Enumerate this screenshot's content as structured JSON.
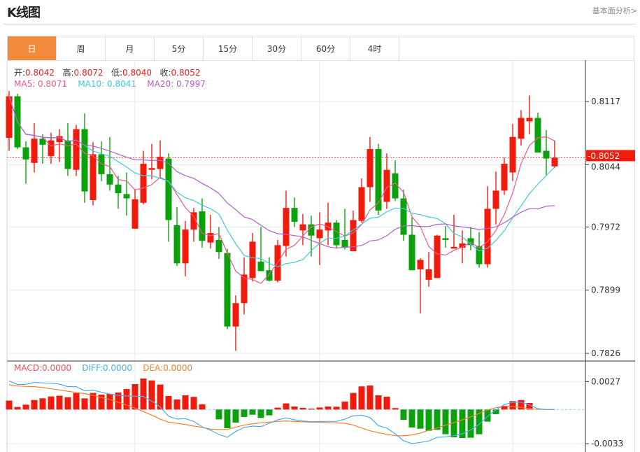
{
  "header": {
    "title": "K线图",
    "link": "基本面分析>"
  },
  "tabs": [
    {
      "label": "日",
      "active": true
    },
    {
      "label": "周"
    },
    {
      "label": "月"
    },
    {
      "label": "5分"
    },
    {
      "label": "15分"
    },
    {
      "label": "30分"
    },
    {
      "label": "60分"
    },
    {
      "label": "4时"
    }
  ],
  "ohlc_legend": {
    "open_label": "开:",
    "open": "0.8042",
    "high_label": "高:",
    "high": "0.8072",
    "low_label": "低:",
    "low": "0.8040",
    "close_label": "收:",
    "close": "0.8052"
  },
  "ma_legend": {
    "ma5": "MA5: 0.8071",
    "ma10": "MA10: 0.8041",
    "ma20": "MA20: 0.7997"
  },
  "macd_legend": {
    "macd": "MACD:0.0000",
    "diff": "DIFF:0.0000",
    "dea": "DEA:0.0000"
  },
  "colors": {
    "up": "#f21a0b",
    "down": "#0aa10a",
    "ma5": "#ec5b8c",
    "ma10": "#3ccbe0",
    "ma20": "#b65dc8",
    "diff": "#4eaaf2",
    "dea": "#f5802a",
    "accent": "#f28c3c"
  },
  "chart_data": [
    {
      "type": "candlestick",
      "title": "K线图",
      "y_ticks": [
        "0.8117",
        "0.8044",
        "0.7972",
        "0.7899",
        "0.7826"
      ],
      "y_tick_values": [
        0.8117,
        0.8044,
        0.7972,
        0.7899,
        0.7826
      ],
      "ylim": [
        0.7826,
        0.8117
      ],
      "last_price_label": "0.8052",
      "last_price": 0.8052,
      "ma_periods": [
        5,
        10,
        20
      ],
      "candles": [
        [
          0.8075,
          0.8123,
          0.8129,
          0.806
        ],
        [
          0.8123,
          0.8064,
          0.8126,
          0.8062
        ],
        [
          0.8064,
          0.805,
          0.8071,
          0.8022
        ],
        [
          0.8046,
          0.8074,
          0.8092,
          0.8035
        ],
        [
          0.8074,
          0.8067,
          0.8079,
          0.8045
        ],
        [
          0.8054,
          0.8072,
          0.8081,
          0.8045
        ],
        [
          0.807,
          0.8077,
          0.8085,
          0.8047
        ],
        [
          0.8072,
          0.8039,
          0.8092,
          0.8031
        ],
        [
          0.8038,
          0.8085,
          0.809,
          0.8031
        ],
        [
          0.8085,
          0.8013,
          0.8103,
          0.8
        ],
        [
          0.8003,
          0.8056,
          0.807,
          0.7997
        ],
        [
          0.8056,
          0.8033,
          0.8071,
          0.8025
        ],
        [
          0.8033,
          0.8021,
          0.8076,
          0.8014
        ],
        [
          0.8021,
          0.8011,
          0.8031,
          0.7993
        ],
        [
          0.801,
          0.8005,
          0.8035,
          0.7985
        ],
        [
          0.797,
          0.8004,
          0.8016,
          0.797
        ],
        [
          0.8,
          0.8045,
          0.806,
          0.7998
        ],
        [
          0.8038,
          0.804,
          0.8068,
          0.8027
        ],
        [
          0.8039,
          0.8053,
          0.8072,
          0.8028
        ],
        [
          0.8051,
          0.798,
          0.8057,
          0.7955
        ],
        [
          0.7974,
          0.793,
          0.7995,
          0.7927
        ],
        [
          0.793,
          0.7969,
          0.7979,
          0.7915
        ],
        [
          0.7969,
          0.7989,
          0.7994,
          0.7955
        ],
        [
          0.799,
          0.7956,
          0.8005,
          0.7948
        ],
        [
          0.7954,
          0.7965,
          0.7986,
          0.7947
        ],
        [
          0.7957,
          0.7943,
          0.7972,
          0.7935
        ],
        [
          0.7942,
          0.7857,
          0.7947,
          0.7854
        ],
        [
          0.7857,
          0.7884,
          0.7893,
          0.7829
        ],
        [
          0.7884,
          0.7917,
          0.7937,
          0.7871
        ],
        [
          0.7913,
          0.7955,
          0.7965,
          0.7909
        ],
        [
          0.7932,
          0.7921,
          0.7972,
          0.7921
        ],
        [
          0.7922,
          0.791,
          0.7937,
          0.7909
        ],
        [
          0.791,
          0.7951,
          0.7957,
          0.7908
        ],
        [
          0.795,
          0.7994,
          0.8014,
          0.7938
        ],
        [
          0.7994,
          0.7978,
          0.8006,
          0.7972
        ],
        [
          0.7968,
          0.7975,
          0.7987,
          0.7951
        ],
        [
          0.7975,
          0.7962,
          0.7985,
          0.7938
        ],
        [
          0.7959,
          0.7969,
          0.7989,
          0.7928
        ],
        [
          0.7968,
          0.7977,
          0.8,
          0.7951
        ],
        [
          0.7977,
          0.7951,
          0.798,
          0.7947
        ],
        [
          0.7957,
          0.7948,
          0.7993,
          0.7946
        ],
        [
          0.7944,
          0.798,
          0.7991,
          0.7944
        ],
        [
          0.7979,
          0.8018,
          0.8028,
          0.7977
        ],
        [
          0.8018,
          0.8062,
          0.8076,
          0.8001
        ],
        [
          0.8062,
          0.7991,
          0.8068,
          0.7986
        ],
        [
          0.8001,
          0.8038,
          0.8057,
          0.7993
        ],
        [
          0.8034,
          0.8005,
          0.8049,
          0.8002
        ],
        [
          0.8005,
          0.7963,
          0.8015,
          0.7956
        ],
        [
          0.7963,
          0.7922,
          0.7983,
          0.7922
        ],
        [
          0.7923,
          0.7934,
          0.7936,
          0.7872
        ],
        [
          0.7911,
          0.7923,
          0.7943,
          0.7903
        ],
        [
          0.7913,
          0.7962,
          0.7963,
          0.7913
        ],
        [
          0.7959,
          0.7957,
          0.7973,
          0.7948
        ],
        [
          0.7947,
          0.7949,
          0.7986,
          0.7947
        ],
        [
          0.7948,
          0.7953,
          0.7968,
          0.793
        ],
        [
          0.7959,
          0.7951,
          0.7972,
          0.7945
        ],
        [
          0.795,
          0.7929,
          0.7966,
          0.7925
        ],
        [
          0.7929,
          0.7993,
          0.8019,
          0.7925
        ],
        [
          0.7993,
          0.8014,
          0.8036,
          0.7975
        ],
        [
          0.8014,
          0.8045,
          0.8052,
          0.8009
        ],
        [
          0.8035,
          0.8076,
          0.8091,
          0.8025
        ],
        [
          0.8074,
          0.8098,
          0.8107,
          0.8066
        ],
        [
          0.8094,
          0.8098,
          0.8124,
          0.8079
        ],
        [
          0.8098,
          0.8058,
          0.8104,
          0.8058
        ],
        [
          0.806,
          0.8051,
          0.8084,
          0.8032
        ],
        [
          0.8042,
          0.8052,
          0.8072,
          0.804
        ]
      ]
    },
    {
      "type": "bar+line",
      "title": "MACD",
      "y_ticks": [
        "0.0027",
        "-0.0033"
      ],
      "y_tick_values": [
        0.0027,
        -0.0033
      ],
      "macd": [
        0.00086,
        0.00025,
        0.00047,
        0.00092,
        0.00108,
        0.00126,
        0.00133,
        0.00119,
        0.00158,
        0.00108,
        0.0016,
        0.00144,
        0.00151,
        0.00164,
        0.00198,
        0.00245,
        0.00299,
        0.00281,
        0.00241,
        0.00131,
        0.00097,
        0.00137,
        0.00122,
        0.0005,
        0.0,
        -0.00095,
        -0.0018,
        -0.00126,
        -0.00072,
        -0.0005,
        -0.00081,
        -0.00056,
        0.00018,
        0.00059,
        0.00029,
        0.00016,
        9e-05,
        0.0002,
        0.00029,
        0.00027,
        0.00077,
        0.0016,
        0.00223,
        0.00232,
        0.00137,
        0.00124,
        0.00014,
        -0.00099,
        -0.00173,
        -0.00185,
        -0.00205,
        -0.00196,
        -0.00238,
        -0.00268,
        -0.00275,
        -0.00272,
        -0.00238,
        -0.00117,
        -0.00045,
        0.00034,
        0.00081,
        0.00092,
        0.00063,
        0.0,
        0.0,
        0.0
      ],
      "diff": [
        0.00277,
        0.00241,
        0.00243,
        0.00261,
        0.00257,
        0.00254,
        0.00245,
        0.00221,
        0.00221,
        0.0018,
        0.00187,
        0.00167,
        0.00149,
        0.00137,
        0.00131,
        0.00128,
        0.00126,
        0.00081,
        0.00025,
        -0.00065,
        -0.00092,
        -0.00088,
        -0.00115,
        -0.00167,
        -0.002,
        -0.00241,
        -0.00268,
        -0.00212,
        -0.00173,
        -0.0016,
        -0.00164,
        -0.00133,
        -0.00099,
        -0.00081,
        -0.00099,
        -0.0011,
        -0.00119,
        -0.00115,
        -0.00115,
        -0.00115,
        -0.00092,
        -0.00061,
        -0.00054,
        -0.00077,
        -0.00155,
        -0.00178,
        -0.00234,
        -0.00302,
        -0.00329,
        -0.00317,
        -0.00304,
        -0.00268,
        -0.00263,
        -0.00252,
        -0.00234,
        -0.00196,
        -0.00144,
        -0.00065,
        -2e-05,
        0.00047,
        0.0007,
        0.0007,
        0.00043,
        9e-05,
        0.0,
        0.0
      ],
      "dea": [
        0.00239,
        0.00227,
        0.00223,
        0.00221,
        0.00212,
        0.002,
        0.00189,
        0.00176,
        0.00164,
        0.00153,
        0.00137,
        0.00115,
        0.00097,
        0.0007,
        0.00043,
        0.00014,
        -0.0002,
        -0.00054,
        -0.00092,
        -0.00122,
        -0.00133,
        -0.00144,
        -0.0016,
        -0.00173,
        -0.00189,
        -0.00194,
        -0.00191,
        -0.00171,
        -0.00151,
        -0.00137,
        -0.00128,
        -0.00122,
        -0.00115,
        -0.0011,
        -0.00115,
        -0.00119,
        -0.00122,
        -0.00122,
        -0.00126,
        -0.00128,
        -0.00133,
        -0.00149,
        -0.00178,
        -0.00205,
        -0.00223,
        -0.00239,
        -0.00252,
        -0.00254,
        -0.00245,
        -0.00227,
        -0.002,
        -0.00178,
        -0.00151,
        -0.00126,
        -0.00099,
        -0.0007,
        -0.00038,
        -5e-05,
        0.00018,
        0.00034,
        0.00032,
        0.0002,
        9e-05,
        2e-05,
        0.0,
        0.0
      ]
    }
  ]
}
